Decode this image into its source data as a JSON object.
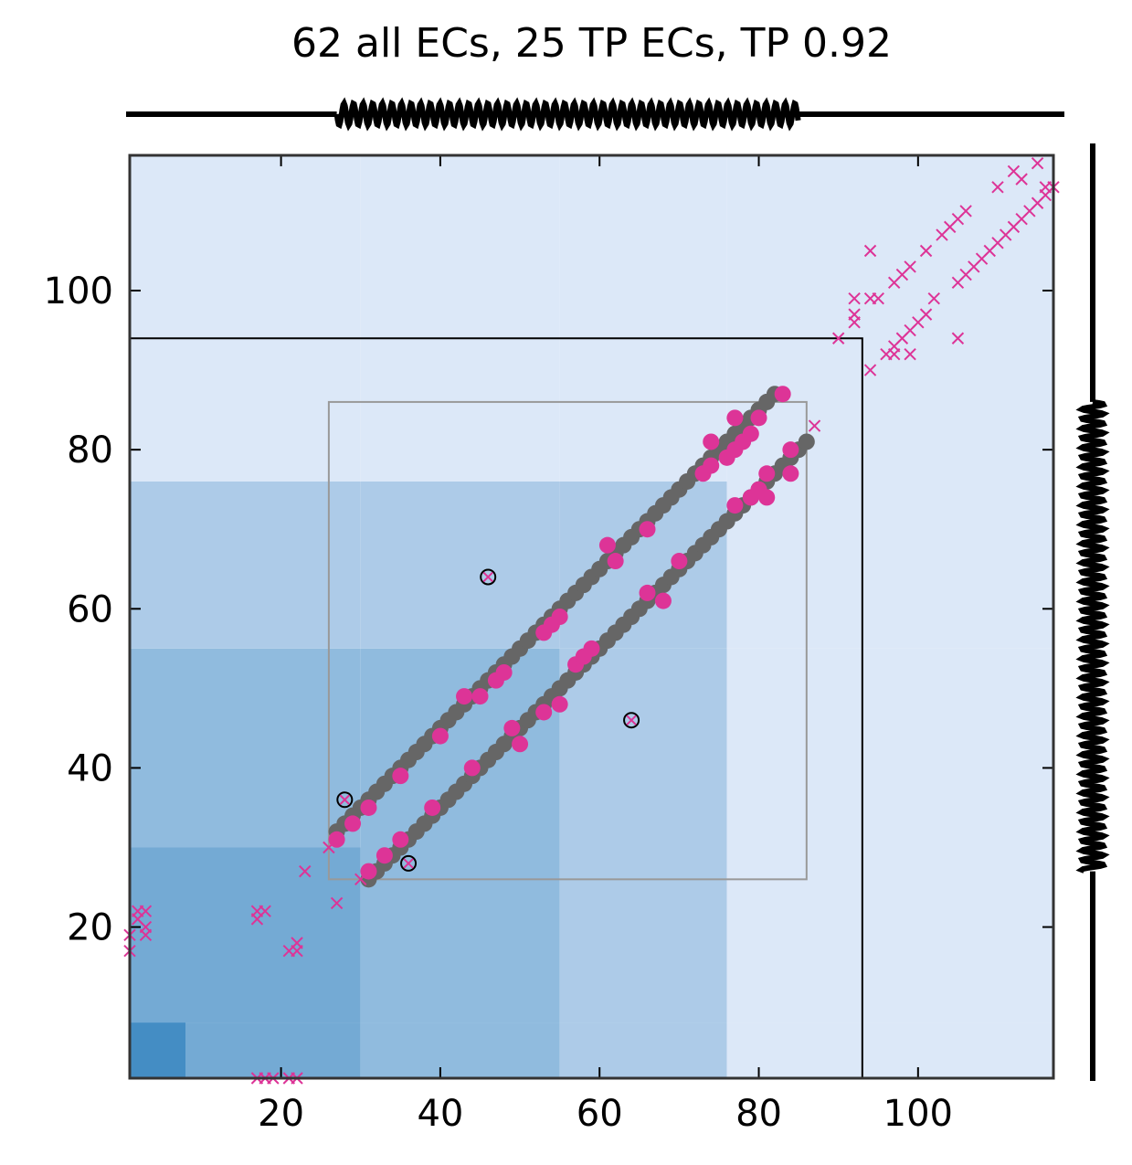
{
  "chart_data": {
    "type": "heatmap",
    "title": "62 all ECs, 25 TP ECs, TP 0.92",
    "xlabel": "",
    "ylabel": "",
    "xlim": [
      1,
      117
    ],
    "ylim": [
      1,
      117
    ],
    "xticks": [
      20,
      40,
      60,
      80,
      100
    ],
    "yticks": [
      20,
      40,
      60,
      80,
      100
    ],
    "grid": false,
    "colors": {
      "true_positive": "#dd3497",
      "structure_contact": "#666666",
      "x_marker": "#dd3497",
      "frame": "#333333"
    },
    "secondary_structure": {
      "top_helix": [
        27,
        85
      ],
      "right_helix": [
        27,
        86
      ]
    },
    "background_bands": [
      {
        "lo": 1,
        "hi": 8,
        "level": 0.9
      },
      {
        "lo": 8,
        "hi": 30,
        "level": 0.65
      },
      {
        "lo": 30,
        "hi": 55,
        "level": 0.5
      },
      {
        "lo": 55,
        "hi": 76,
        "level": 0.35
      },
      {
        "lo": 76,
        "hi": 117,
        "level": 0.1
      }
    ],
    "boxes": [
      {
        "x0": 1,
        "x1": 93,
        "y0": 1,
        "y1": 94,
        "color": "#000000"
      },
      {
        "x0": 26,
        "x1": 86,
        "y0": 26,
        "y1": 86,
        "color": "#999999"
      }
    ],
    "structure_contacts_ranges": [
      {
        "from": 27,
        "to": 82,
        "offset": 5
      },
      {
        "from": 31,
        "to": 86,
        "offset": -5
      }
    ],
    "true_positive_contacts": [
      [
        27,
        31
      ],
      [
        29,
        33
      ],
      [
        31,
        35
      ],
      [
        35,
        39
      ],
      [
        40,
        44
      ],
      [
        43,
        49
      ],
      [
        45,
        49
      ],
      [
        47,
        51
      ],
      [
        48,
        52
      ],
      [
        53,
        57
      ],
      [
        54,
        58
      ],
      [
        55,
        59
      ],
      [
        61,
        68
      ],
      [
        62,
        66
      ],
      [
        66,
        70
      ],
      [
        74,
        81
      ],
      [
        77,
        84
      ],
      [
        80,
        84
      ],
      [
        73,
        77
      ],
      [
        74,
        78
      ],
      [
        76,
        79
      ],
      [
        77,
        80
      ],
      [
        78,
        81
      ],
      [
        79,
        82
      ],
      [
        83,
        87
      ],
      [
        31,
        27
      ],
      [
        33,
        29
      ],
      [
        35,
        31
      ],
      [
        39,
        35
      ],
      [
        44,
        40
      ],
      [
        49,
        45
      ],
      [
        50,
        43
      ],
      [
        53,
        47
      ],
      [
        55,
        48
      ],
      [
        57,
        53
      ],
      [
        58,
        54
      ],
      [
        59,
        55
      ],
      [
        66,
        62
      ],
      [
        68,
        61
      ],
      [
        70,
        66
      ],
      [
        77,
        73
      ],
      [
        79,
        74
      ],
      [
        80,
        75
      ],
      [
        81,
        74
      ],
      [
        81,
        77
      ],
      [
        84,
        77
      ],
      [
        84,
        80
      ]
    ],
    "false_positive_contacts": [
      [
        46,
        64
      ],
      [
        64,
        46
      ],
      [
        28,
        36
      ],
      [
        36,
        28
      ]
    ],
    "x_markers": [
      [
        1,
        17
      ],
      [
        1,
        19
      ],
      [
        2,
        21
      ],
      [
        2,
        22
      ],
      [
        3,
        19
      ],
      [
        3,
        20
      ],
      [
        3,
        22
      ],
      [
        17,
        21
      ],
      [
        17,
        22
      ],
      [
        18,
        22
      ],
      [
        22,
        17
      ],
      [
        22,
        18
      ],
      [
        21,
        17
      ],
      [
        23,
        27
      ],
      [
        18,
        1
      ],
      [
        19,
        1
      ],
      [
        21,
        1
      ],
      [
        22,
        1
      ],
      [
        17,
        1
      ],
      [
        26,
        30
      ],
      [
        27,
        23
      ],
      [
        30,
        26
      ],
      [
        83,
        87
      ],
      [
        87,
        83
      ],
      [
        90,
        94
      ],
      [
        92,
        96
      ],
      [
        92,
        97
      ],
      [
        92,
        99
      ],
      [
        94,
        90
      ],
      [
        94,
        99
      ],
      [
        94,
        105
      ],
      [
        95,
        99
      ],
      [
        96,
        92
      ],
      [
        97,
        93
      ],
      [
        97,
        92
      ],
      [
        97,
        101
      ],
      [
        98,
        102
      ],
      [
        98,
        94
      ],
      [
        99,
        92
      ],
      [
        99,
        95
      ],
      [
        99,
        103
      ],
      [
        100,
        96
      ],
      [
        101,
        97
      ],
      [
        101,
        105
      ],
      [
        102,
        99
      ],
      [
        103,
        107
      ],
      [
        104,
        108
      ],
      [
        105,
        94
      ],
      [
        105,
        101
      ],
      [
        105,
        109
      ],
      [
        106,
        102
      ],
      [
        106,
        110
      ],
      [
        107,
        103
      ],
      [
        108,
        104
      ],
      [
        109,
        105
      ],
      [
        110,
        106
      ],
      [
        110,
        113
      ],
      [
        111,
        107
      ],
      [
        112,
        108
      ],
      [
        112,
        115
      ],
      [
        113,
        109
      ],
      [
        113,
        114
      ],
      [
        114,
        110
      ],
      [
        115,
        111
      ],
      [
        115,
        116
      ],
      [
        116,
        112
      ],
      [
        116,
        113
      ],
      [
        117,
        113
      ]
    ]
  }
}
